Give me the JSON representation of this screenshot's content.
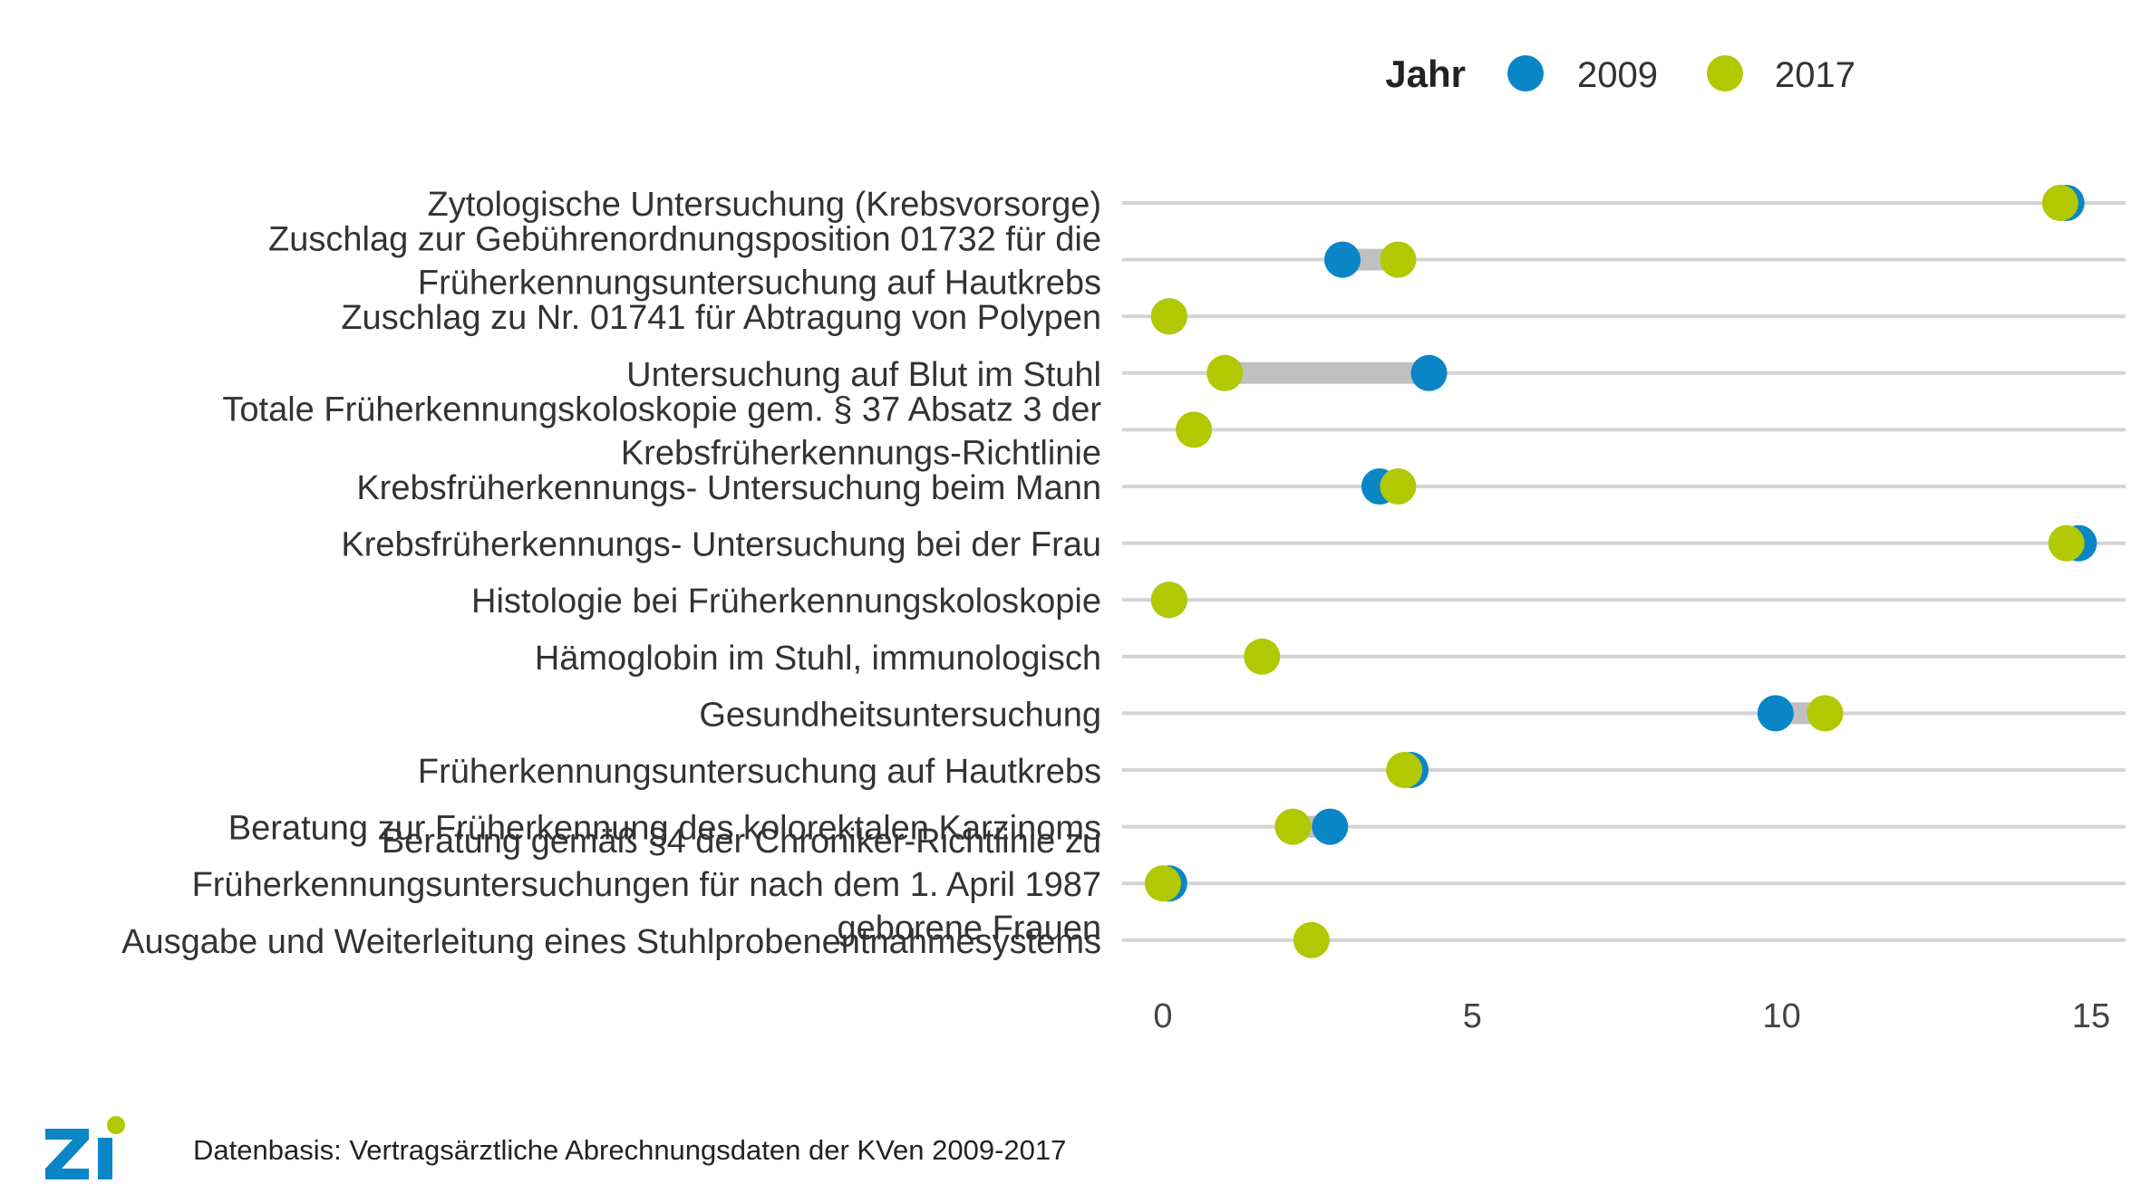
{
  "legend": {
    "title": "Jahr",
    "items": [
      {
        "label": "2009",
        "color": "#0a86c7"
      },
      {
        "label": "2017",
        "color": "#b2c800"
      }
    ]
  },
  "colors": {
    "connector": "#c0c0c0",
    "grid": "#d4d4d4"
  },
  "chart_data": {
    "type": "dumbbell",
    "xlim": [
      -0.5,
      15.5
    ],
    "x_ticks": [
      0,
      5,
      10,
      15
    ],
    "series": [
      {
        "name": "2009"
      },
      {
        "name": "2017"
      }
    ],
    "rows": [
      {
        "label": [
          "Zytologische Untersuchung (Krebsvorsorge)"
        ],
        "v2009": 14.6,
        "v2017": 14.5
      },
      {
        "label": [
          "Zuschlag zur Gebührenordnungsposition 01732 für die",
          "Früherkennungsuntersuchung auf Hautkrebs"
        ],
        "v2009": 2.9,
        "v2017": 3.8
      },
      {
        "label": [
          "Zuschlag zu Nr. 01741 für Abtragung von Polypen"
        ],
        "v2009": 0.1,
        "v2017": 0.1
      },
      {
        "label": [
          "Untersuchung auf Blut im Stuhl"
        ],
        "v2009": 4.3,
        "v2017": 1.0
      },
      {
        "label": [
          "Totale Früherkennungskoloskopie gem. § 37 Absatz 3 der",
          "Krebsfrüherkennungs-Richtlinie"
        ],
        "v2009": null,
        "v2017": 0.5
      },
      {
        "label": [
          "Krebsfrüherkennungs- Untersuchung beim Mann"
        ],
        "v2009": 3.5,
        "v2017": 3.8
      },
      {
        "label": [
          "Krebsfrüherkennungs- Untersuchung bei der Frau"
        ],
        "v2009": 14.8,
        "v2017": 14.6
      },
      {
        "label": [
          "Histologie bei Früherkennungskoloskopie"
        ],
        "v2009": 0.1,
        "v2017": 0.1
      },
      {
        "label": [
          "Hämoglobin im Stuhl, immunologisch"
        ],
        "v2009": null,
        "v2017": 1.6
      },
      {
        "label": [
          "Gesundheitsuntersuchung"
        ],
        "v2009": 9.9,
        "v2017": 10.7
      },
      {
        "label": [
          "Früherkennungsuntersuchung auf Hautkrebs"
        ],
        "v2009": 4.0,
        "v2017": 3.9
      },
      {
        "label": [
          "Beratung zur Früherkennung des kolorektalen Karzinoms"
        ],
        "v2009": 2.7,
        "v2017": 2.1
      },
      {
        "label": [
          "Beratung gemäß §4 der Chroniker-Richtlinie zu",
          "Früherkennungsuntersuchungen für nach dem 1. April 1987",
          "geborene Frauen"
        ],
        "v2009": 0.1,
        "v2017": 0.0
      },
      {
        "label": [
          "Ausgabe und Weiterleitung eines Stuhlprobenentnahmesystems"
        ],
        "v2009": null,
        "v2017": 2.4
      }
    ]
  },
  "footer": {
    "source": "Datenbasis: Vertragsärztliche Abrechnungsdaten der KVen 2009-2017"
  },
  "logo": {
    "text": "Zi",
    "colors": {
      "letters": "#0a86c7",
      "dot": "#b2c800"
    }
  }
}
